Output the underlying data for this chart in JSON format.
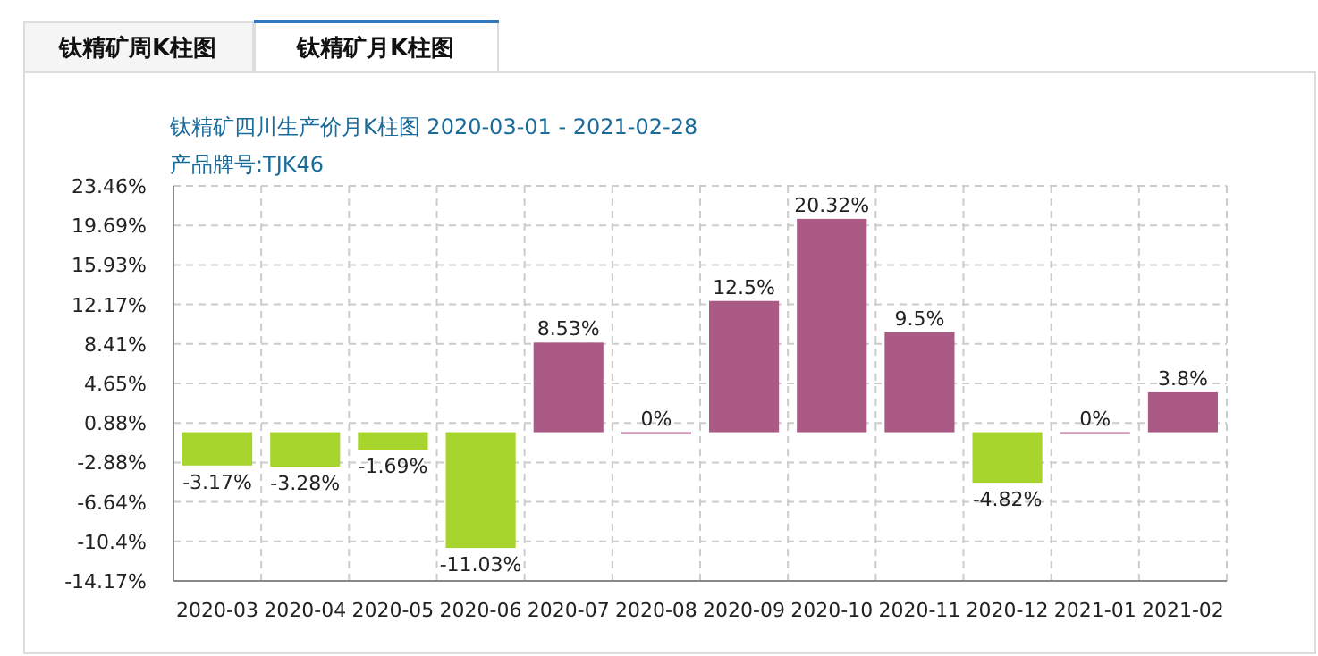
{
  "chart_data": {
    "type": "bar",
    "title": "钛精矿四川生产价月K柱图  2020-03-01 - 2021-02-28",
    "subtitle": "产品牌号:TJK46",
    "annotations": [
      "钛精矿周K柱图",
      "钛精矿月K柱图"
    ],
    "categories": [
      "2020-03",
      "2020-04",
      "2020-05",
      "2020-06",
      "2020-07",
      "2020-08",
      "2020-09",
      "2020-10",
      "2020-11",
      "2020-12",
      "2021-01",
      "2021-02"
    ],
    "values": [
      -3.17,
      -3.28,
      -1.69,
      -11.03,
      8.53,
      0,
      12.5,
      20.32,
      9.5,
      -4.82,
      0,
      3.8
    ],
    "value_labels": [
      "-3.17%",
      "-3.28%",
      "-1.69%",
      "-11.03%",
      "8.53%",
      "0%",
      "12.5%",
      "20.32%",
      "9.5%",
      "-4.82%",
      "0%",
      "3.8%"
    ],
    "colors": [
      "#a8d42e",
      "#a8d42e",
      "#a8d42e",
      "#a8d42e",
      "#ab5985",
      "#ab5985",
      "#ab5985",
      "#ab5985",
      "#ab5985",
      "#a8d42e",
      "#ab5985",
      "#ab5985"
    ],
    "ylim": [
      -14.17,
      23.46
    ],
    "yticks": [
      {
        "value": 23.46,
        "label": "23.46%"
      },
      {
        "value": 19.69,
        "label": "19.69%"
      },
      {
        "value": 15.93,
        "label": "15.93%"
      },
      {
        "value": 12.17,
        "label": "12.17%"
      },
      {
        "value": 8.41,
        "label": "8.41%"
      },
      {
        "value": 4.65,
        "label": "4.65%"
      },
      {
        "value": 0.88,
        "label": "0.88%"
      },
      {
        "value": -2.88,
        "label": "-2.88%"
      },
      {
        "value": -6.64,
        "label": "-6.64%"
      },
      {
        "value": -10.4,
        "label": "-10.4%"
      },
      {
        "value": -14.17,
        "label": "-14.17%"
      }
    ],
    "grid": true
  }
}
